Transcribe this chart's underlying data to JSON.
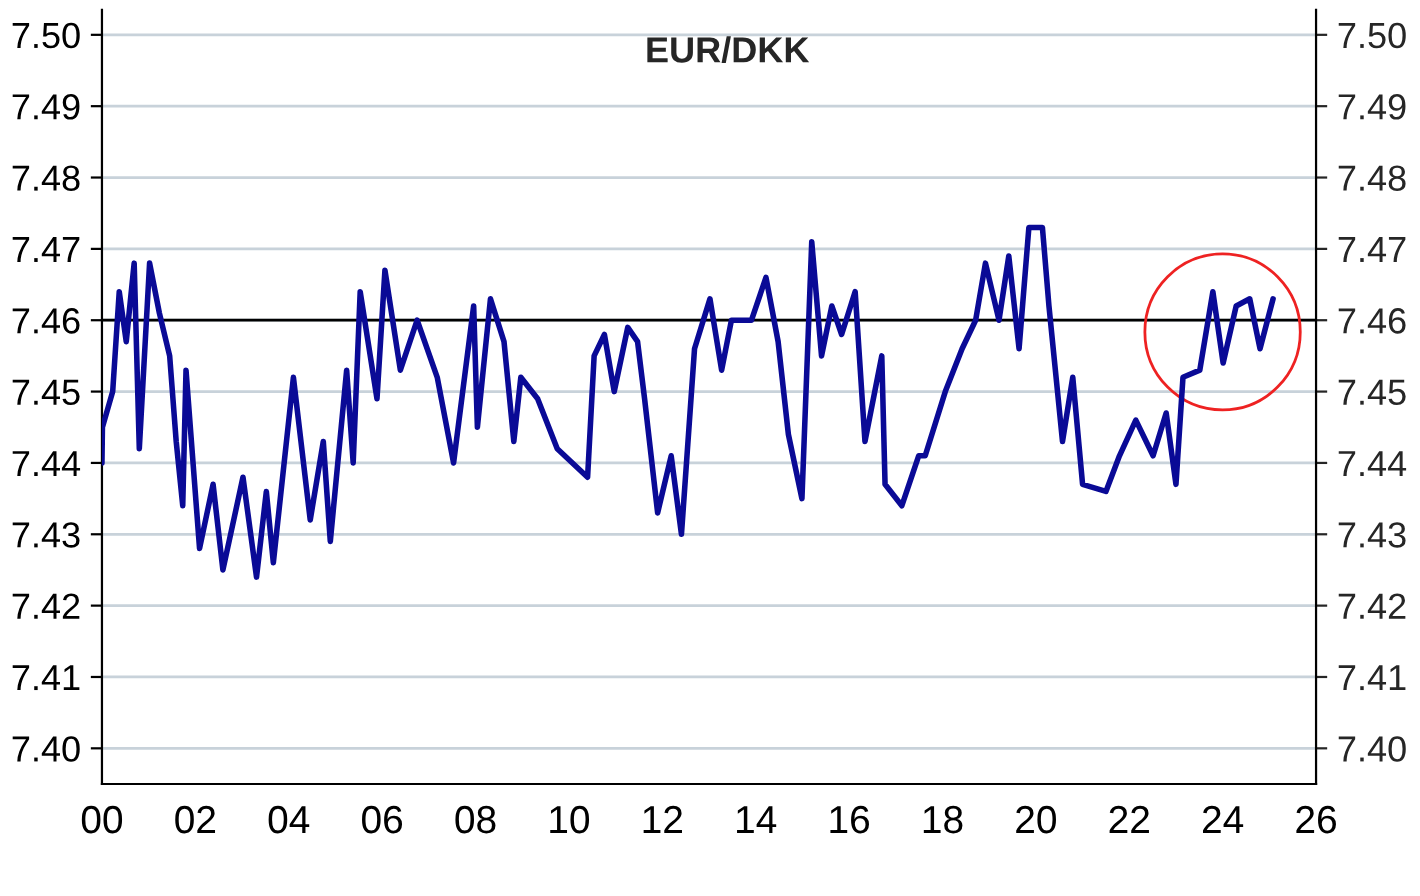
{
  "chart_data": {
    "type": "line",
    "title": "EUR/DKK",
    "series": [
      {
        "color": "#0a0a96",
        "x": [
          0.0,
          0.01,
          0.23,
          0.37,
          0.52,
          0.69,
          0.8,
          1.02,
          1.23,
          1.45,
          1.59,
          1.73,
          1.8,
          2.09,
          2.38,
          2.59,
          3.02,
          3.31,
          3.52,
          3.67,
          4.1,
          4.46,
          4.74,
          4.89,
          5.24,
          5.38,
          5.53,
          5.89,
          6.06,
          6.39,
          6.75,
          7.18,
          7.53,
          7.96,
          8.04,
          8.32,
          8.61,
          8.82,
          8.97,
          9.33,
          9.75,
          10.4,
          10.54,
          10.76,
          10.97,
          11.26,
          11.47,
          11.62,
          11.9,
          12.19,
          12.41,
          12.69,
          13.02,
          13.27,
          13.48,
          13.91,
          14.22,
          14.48,
          14.7,
          14.99,
          15.2,
          15.41,
          15.63,
          15.84,
          16.13,
          16.34,
          16.7,
          16.77,
          17.13,
          17.49,
          17.63,
          18.06,
          18.42,
          18.71,
          18.92,
          19.21,
          19.42,
          19.64,
          19.85,
          20.14,
          20.28,
          20.57,
          20.79,
          21.0,
          21.5,
          21.79,
          22.14,
          22.51,
          22.79,
          23.0,
          23.15,
          23.51,
          23.79,
          24.01,
          24.29,
          24.58,
          24.8,
          25.08
        ],
        "values": [
          7.44,
          7.445,
          7.45,
          7.464,
          7.457,
          7.468,
          7.442,
          7.468,
          7.461,
          7.455,
          7.443,
          7.434,
          7.453,
          7.428,
          7.437,
          7.425,
          7.438,
          7.424,
          7.436,
          7.426,
          7.452,
          7.432,
          7.443,
          7.429,
          7.453,
          7.44,
          7.464,
          7.449,
          7.467,
          7.453,
          7.46,
          7.452,
          7.44,
          7.462,
          7.445,
          7.463,
          7.457,
          7.443,
          7.452,
          7.449,
          7.442,
          7.438,
          7.455,
          7.458,
          7.45,
          7.459,
          7.457,
          7.449,
          7.433,
          7.441,
          7.43,
          7.456,
          7.463,
          7.453,
          7.46,
          7.46,
          7.466,
          7.457,
          7.444,
          7.435,
          7.471,
          7.455,
          7.462,
          7.458,
          7.464,
          7.443,
          7.455,
          7.437,
          7.434,
          7.441,
          7.441,
          7.45,
          7.456,
          7.46,
          7.468,
          7.46,
          7.469,
          7.456,
          7.473,
          7.473,
          7.462,
          7.443,
          7.452,
          7.437,
          7.436,
          7.441,
          7.446,
          7.441,
          7.447,
          7.437,
          7.452,
          7.453,
          7.464,
          7.454,
          7.462,
          7.463,
          7.456,
          7.463
        ]
      }
    ],
    "xlim": [
      0,
      26
    ],
    "xticks": [
      {
        "value": 0,
        "label": "00"
      },
      {
        "value": 2,
        "label": "02"
      },
      {
        "value": 4,
        "label": "04"
      },
      {
        "value": 6,
        "label": "06"
      },
      {
        "value": 8,
        "label": "08"
      },
      10,
      12,
      14,
      16,
      18,
      20,
      22,
      24,
      26
    ],
    "ylim": [
      7.395,
      7.5035
    ],
    "yticks": [
      {
        "value": 7.4,
        "label": "7.40"
      },
      7.41,
      7.42,
      7.43,
      7.44,
      7.45,
      7.46,
      7.47,
      7.48,
      7.49,
      {
        "value": 7.5,
        "label": "7.50"
      }
    ],
    "y2lim": [
      7.395,
      7.5035
    ],
    "y2ticks": [
      {
        "value": 7.4,
        "label": "7.40"
      },
      7.41,
      7.42,
      7.43,
      7.44,
      7.45,
      7.46,
      7.47,
      7.48,
      7.49,
      {
        "value": 7.5,
        "label": "7.50"
      }
    ],
    "ref_lines": [
      {
        "axis": "y",
        "value": 7.46,
        "color": "#000000"
      }
    ],
    "grid": "y",
    "line_style": "solid"
  }
}
